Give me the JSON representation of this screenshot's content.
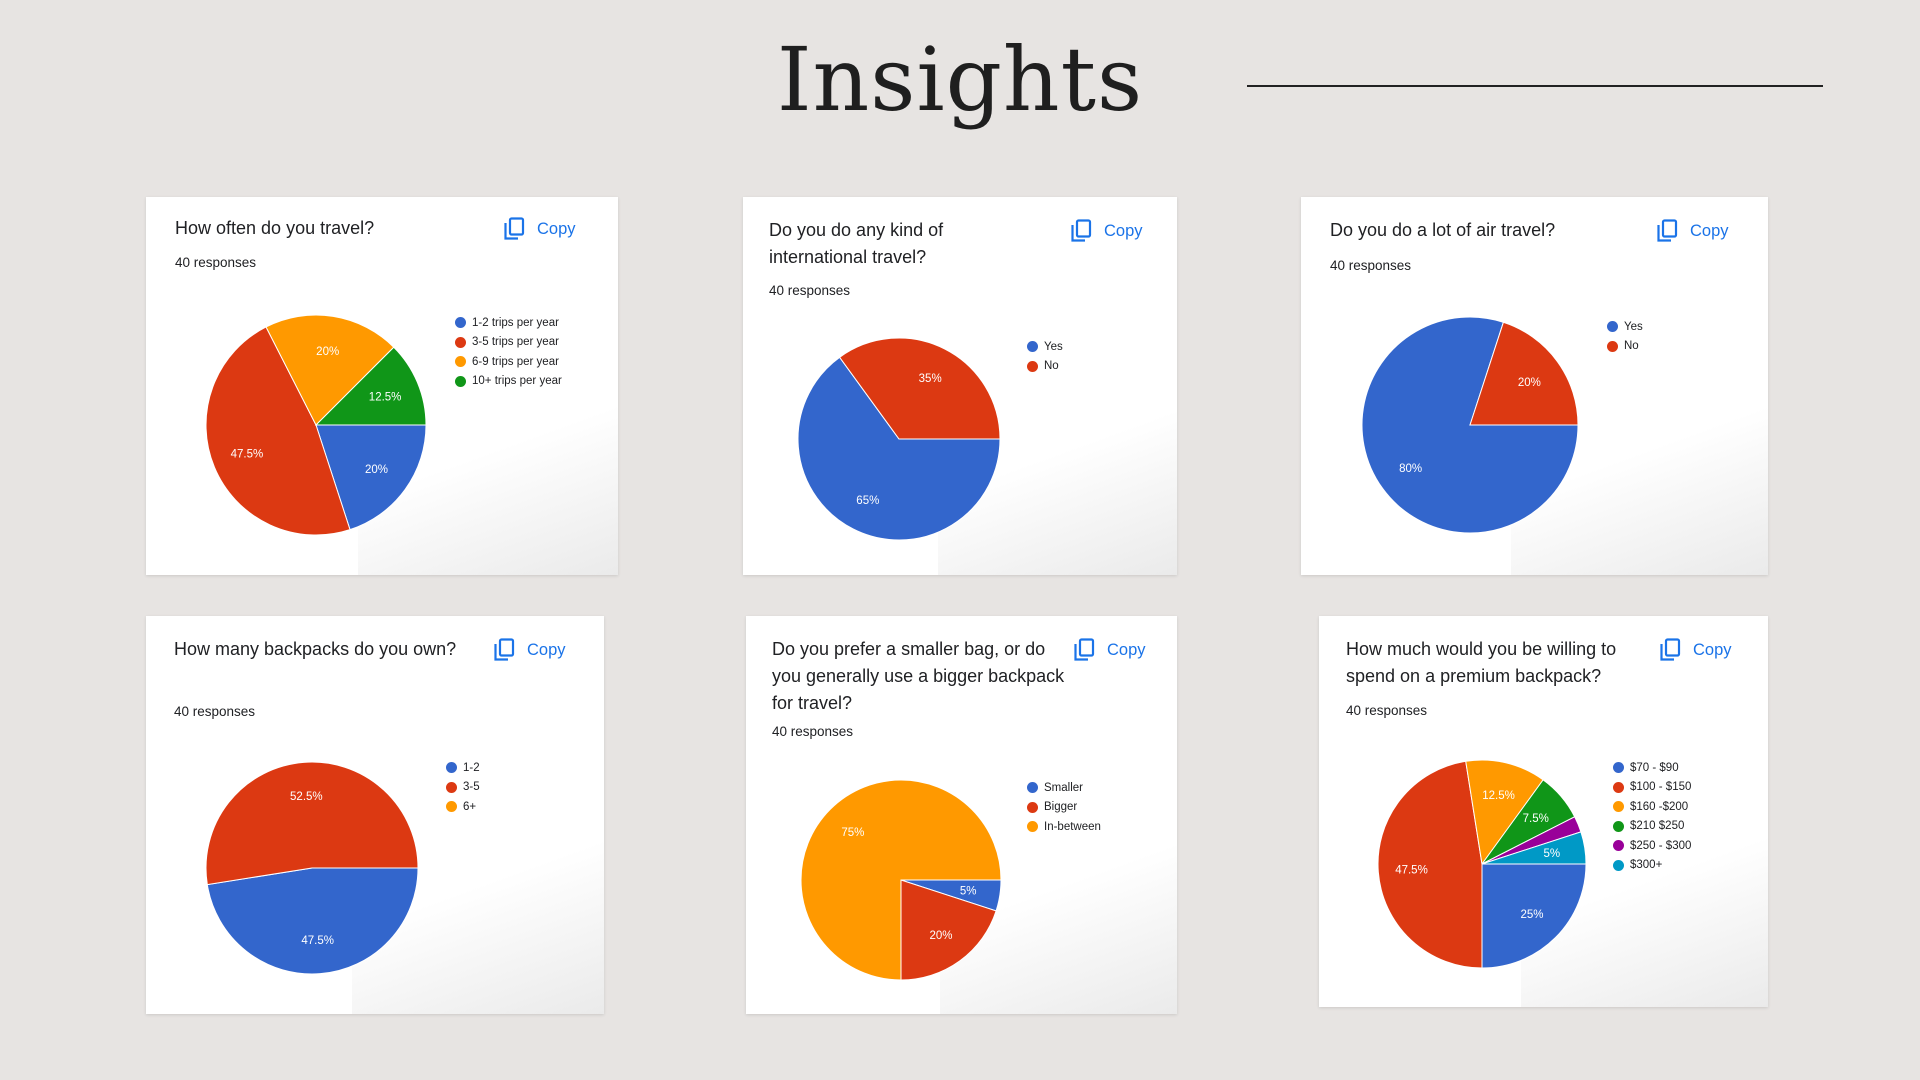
{
  "page": {
    "title": "Insights"
  },
  "copy_label": "Copy",
  "chart_data": [
    {
      "type": "pie",
      "title": "How often do you travel?",
      "responses": "40 responses",
      "categories": [
        "1-2 trips per year",
        "3-5 trips per year",
        "6-9 trips per year",
        "10+ trips per year"
      ],
      "values": [
        20,
        47.5,
        20,
        12.5
      ],
      "labels": [
        "20%",
        "47.5%",
        "20%",
        "12.5%"
      ],
      "colors": [
        "#3366cc",
        "#dc3912",
        "#ff9900",
        "#109618"
      ],
      "legend": "right"
    },
    {
      "type": "pie",
      "title": "Do you do any kind of international travel?",
      "responses": "40 responses",
      "categories": [
        "Yes",
        "No"
      ],
      "values": [
        65,
        35
      ],
      "labels": [
        "65%",
        "35%"
      ],
      "colors": [
        "#3366cc",
        "#dc3912"
      ],
      "legend": "right"
    },
    {
      "type": "pie",
      "title": "Do you do a lot of air travel?",
      "responses": "40 responses",
      "categories": [
        "Yes",
        "No"
      ],
      "values": [
        80,
        20
      ],
      "labels": [
        "80%",
        "20%"
      ],
      "colors": [
        "#3366cc",
        "#dc3912"
      ],
      "legend": "right"
    },
    {
      "type": "pie",
      "title": "How many backpacks do you own?",
      "responses": "40 responses",
      "categories": [
        "1-2",
        "3-5",
        "6+"
      ],
      "values": [
        47.5,
        52.5,
        0
      ],
      "labels": [
        "47.5%",
        "52.5%",
        ""
      ],
      "colors": [
        "#3366cc",
        "#dc3912",
        "#ff9900"
      ],
      "legend": "right"
    },
    {
      "type": "pie",
      "title": "Do you prefer a smaller bag, or do you generally use a bigger backpack for travel?",
      "responses": "40 responses",
      "categories": [
        "Smaller",
        "Bigger",
        "In-between"
      ],
      "values": [
        5,
        20,
        75
      ],
      "labels": [
        "5%",
        "20%",
        "75%"
      ],
      "colors": [
        "#3366cc",
        "#dc3912",
        "#ff9900"
      ],
      "legend": "right"
    },
    {
      "type": "pie",
      "title": "How much would you be willing to spend on a premium backpack?",
      "responses": "40 responses",
      "categories": [
        "$70 - $90",
        "$100 - $150",
        "$160 -$200",
        "$210 $250",
        "$250 - $300",
        "$300+"
      ],
      "values": [
        25,
        47.5,
        12.5,
        7.5,
        2.5,
        5
      ],
      "labels": [
        "25%",
        "47.5%",
        "12.5%",
        "7.5%",
        "",
        "5%"
      ],
      "colors": [
        "#3366cc",
        "#dc3912",
        "#ff9900",
        "#109618",
        "#990099",
        "#0099c6"
      ],
      "legend": "right"
    }
  ]
}
